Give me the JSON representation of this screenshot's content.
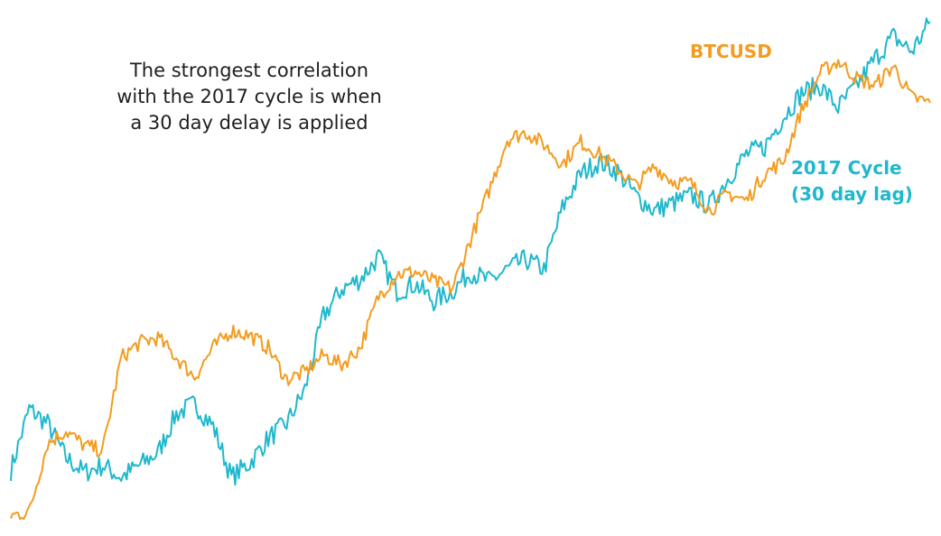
{
  "annotation": {
    "lines": [
      "The strongest correlation",
      "with the 2017 cycle is when",
      "a 30 day delay is applied"
    ]
  },
  "colors": {
    "btcusd": "#f39c1f",
    "cycle": "#1fb8cc"
  },
  "chart_data": {
    "type": "line",
    "title": "",
    "xlabel": "",
    "ylabel": "",
    "grid": false,
    "legend": "direct labels at line ends",
    "x": [
      0,
      2,
      4,
      6,
      8,
      10,
      12,
      14,
      16,
      18,
      20,
      22,
      24,
      26,
      28,
      30,
      32,
      34,
      36,
      38,
      40,
      42,
      44,
      46,
      48,
      50,
      52,
      54,
      56,
      58,
      60,
      62,
      64,
      66,
      68,
      70,
      72,
      74,
      76,
      78,
      80,
      82,
      84,
      86,
      88,
      90,
      92,
      94,
      96,
      98,
      100
    ],
    "series": [
      {
        "name": "BTCUSD",
        "values": [
          1.2,
          2.0,
          16.0,
          18.5,
          15.5,
          14.5,
          33.5,
          36.5,
          37.5,
          33.5,
          29.5,
          35.5,
          39.0,
          38.0,
          35.5,
          29.0,
          30.5,
          34.0,
          32.0,
          35.5,
          46.0,
          50.5,
          51.0,
          49.0,
          47.5,
          57.5,
          67.5,
          78.0,
          79.5,
          77.0,
          73.0,
          77.5,
          75.0,
          72.0,
          68.5,
          72.5,
          69.5,
          69.0,
          63.5,
          67.0,
          65.5,
          71.0,
          73.5,
          84.0,
          91.5,
          94.0,
          90.5,
          89.0,
          93.0,
          86.5,
          85.5
        ]
      },
      {
        "name": "2017 Cycle (30 day lag)",
        "label_lines": [
          "2017 Cycle",
          "(30 day lag)"
        ],
        "values": [
          10.5,
          23.0,
          20.0,
          13.0,
          10.0,
          11.5,
          9.0,
          11.5,
          14.0,
          22.0,
          24.0,
          19.5,
          9.0,
          12.0,
          17.0,
          20.0,
          27.0,
          42.0,
          47.5,
          49.5,
          54.0,
          47.0,
          48.5,
          45.0,
          47.0,
          51.0,
          49.0,
          51.5,
          53.5,
          51.5,
          64.0,
          71.0,
          73.5,
          71.5,
          66.5,
          63.5,
          65.0,
          66.5,
          64.5,
          70.0,
          75.0,
          76.5,
          82.5,
          87.5,
          89.0,
          84.5,
          89.0,
          94.5,
          99.0,
          96.0,
          102.0
        ]
      }
    ],
    "xlim": [
      0,
      100
    ],
    "ylim": [
      0,
      105
    ]
  }
}
